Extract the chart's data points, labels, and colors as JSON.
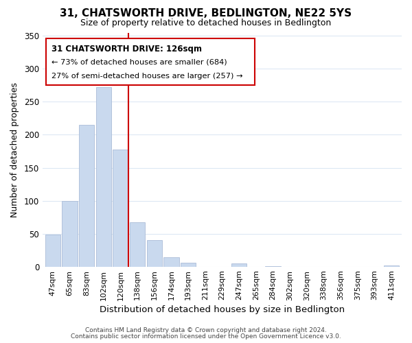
{
  "title": "31, CHATSWORTH DRIVE, BEDLINGTON, NE22 5YS",
  "subtitle": "Size of property relative to detached houses in Bedlington",
  "xlabel": "Distribution of detached houses by size in Bedlington",
  "ylabel": "Number of detached properties",
  "bar_labels": [
    "47sqm",
    "65sqm",
    "83sqm",
    "102sqm",
    "120sqm",
    "138sqm",
    "156sqm",
    "174sqm",
    "193sqm",
    "211sqm",
    "229sqm",
    "247sqm",
    "265sqm",
    "284sqm",
    "302sqm",
    "320sqm",
    "338sqm",
    "356sqm",
    "375sqm",
    "393sqm",
    "411sqm"
  ],
  "bar_values": [
    49,
    100,
    215,
    272,
    178,
    67,
    40,
    14,
    6,
    0,
    0,
    5,
    0,
    1,
    0,
    0,
    0,
    0,
    0,
    0,
    2
  ],
  "bar_color": "#c9d9ee",
  "bar_edge_color": "#aabcd8",
  "vline_color": "#cc0000",
  "ylim": [
    0,
    355
  ],
  "yticks": [
    0,
    50,
    100,
    150,
    200,
    250,
    300,
    350
  ],
  "annotation_title": "31 CHATSWORTH DRIVE: 126sqm",
  "annotation_line1": "← 73% of detached houses are smaller (684)",
  "annotation_line2": "27% of semi-detached houses are larger (257) →",
  "annotation_box_color": "#ffffff",
  "annotation_box_edge": "#cc0000",
  "footer_line1": "Contains HM Land Registry data © Crown copyright and database right 2024.",
  "footer_line2": "Contains public sector information licensed under the Open Government Licence v3.0.",
  "background_color": "#ffffff",
  "grid_color": "#dde8f4"
}
